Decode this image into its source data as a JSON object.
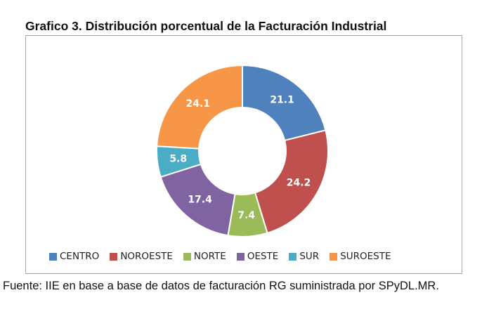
{
  "title": "Grafico 3. Distribución porcentual de la Facturación Industrial",
  "source": "Fuente: IIE en base a base de datos de facturación RG suministrada por SPyDL.MR.",
  "chart_data": {
    "type": "pie",
    "variant": "donut",
    "title": "Grafico 3. Distribución porcentual de la Facturación Industrial",
    "legend_position": "bottom",
    "categories": [
      "CENTRO",
      "NOROESTE",
      "NORTE",
      "OESTE",
      "SUR",
      "SUROESTE"
    ],
    "values": [
      21.1,
      24.2,
      7.4,
      17.4,
      5.8,
      24.1
    ],
    "data_labels": [
      "21.1",
      "24.2",
      "7.4",
      "17.4",
      "5.8",
      "24.1"
    ],
    "colors": [
      "#4f81bd",
      "#c0504d",
      "#9bbb59",
      "#8064a2",
      "#4bacc6",
      "#f79646"
    ]
  }
}
